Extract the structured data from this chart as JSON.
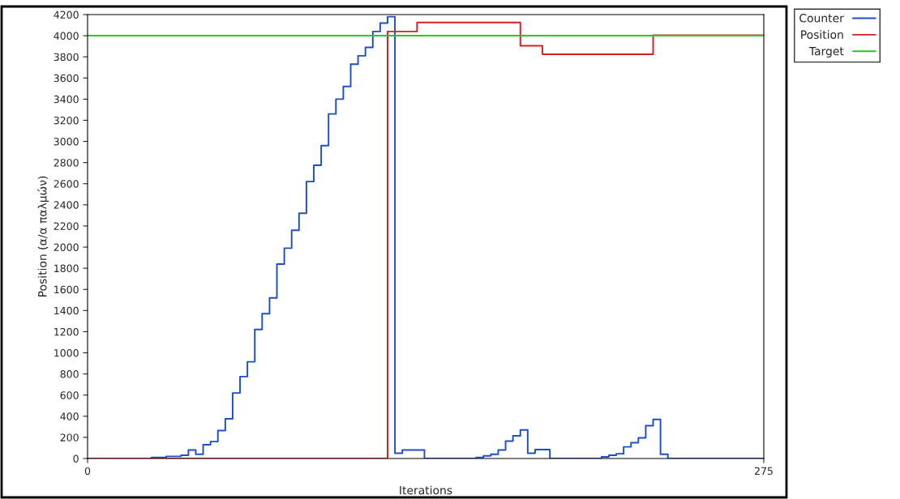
{
  "chart_data": {
    "type": "step",
    "xlabel": "Iterations",
    "ylabel": "Position (α/α παλμών)",
    "xlim": [
      0,
      275
    ],
    "xticks": [
      0,
      275
    ],
    "ylim": [
      0,
      4200
    ],
    "yticks": [
      0,
      200,
      400,
      600,
      800,
      1000,
      1200,
      1400,
      1600,
      1800,
      2000,
      2200,
      2400,
      2600,
      2800,
      3000,
      3200,
      3400,
      3600,
      3800,
      4000,
      4200
    ],
    "grid": false,
    "legend": "top right",
    "series": [
      {
        "name": "Counter",
        "color": "#1f4fc8",
        "x": [
          0,
          26,
          32,
          38,
          41,
          44,
          47,
          50,
          53,
          56,
          59,
          62,
          65,
          68,
          71,
          74,
          77,
          80,
          83,
          86,
          89,
          92,
          95,
          98,
          101,
          104,
          107,
          110,
          113,
          116,
          119,
          122,
          125,
          128,
          137,
          158,
          161,
          164,
          167,
          170,
          173,
          176,
          179,
          182,
          188,
          209,
          212,
          215,
          218,
          221,
          224,
          227,
          230,
          233,
          236,
          275
        ],
        "values": [
          0,
          10,
          20,
          30,
          80,
          40,
          130,
          160,
          265,
          375,
          620,
          775,
          915,
          1220,
          1370,
          1520,
          1840,
          1990,
          2160,
          2320,
          2620,
          2775,
          2960,
          3260,
          3400,
          3520,
          3730,
          3810,
          3890,
          4040,
          4120,
          4180,
          50,
          80,
          0,
          10,
          25,
          40,
          80,
          165,
          215,
          270,
          50,
          85,
          0,
          15,
          30,
          45,
          110,
          150,
          195,
          310,
          370,
          40,
          0,
          0
        ]
      },
      {
        "name": "Position",
        "color": "#d42020",
        "x": [
          0,
          122,
          134,
          176,
          185,
          230,
          275
        ],
        "values": [
          0,
          4040,
          4125,
          3905,
          3825,
          4005,
          4005
        ]
      },
      {
        "name": "Target",
        "color": "#22cc22",
        "x": [
          0,
          275
        ],
        "values": [
          4000,
          4000
        ]
      }
    ]
  }
}
